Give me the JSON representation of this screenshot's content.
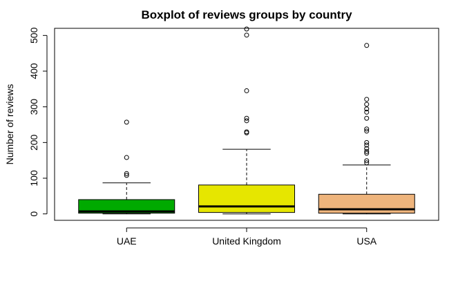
{
  "chart_data": {
    "type": "boxplot",
    "title": "Boxplot of reviews groups by country",
    "xlabel": "",
    "ylabel": "Number of reviews",
    "ylim": [
      -18,
      520
    ],
    "y_ticks": [
      0,
      100,
      200,
      300,
      400,
      500
    ],
    "y_tick_labels": [
      "0",
      "100",
      "200",
      "300",
      "400",
      "500"
    ],
    "grid": false,
    "legend": "none",
    "categories": [
      "UAE",
      "United Kingdom",
      "USA"
    ],
    "boxes": [
      {
        "name": "UAE",
        "color": "#00aa00",
        "whisker_low": 0,
        "q1": 2,
        "median": 7,
        "q3": 40,
        "whisker_high": 87,
        "outliers": [
          108,
          113,
          158,
          257
        ]
      },
      {
        "name": "United Kingdom",
        "color": "#e6e600",
        "whisker_low": 0,
        "q1": 4,
        "median": 21,
        "q3": 81,
        "whisker_high": 181,
        "outliers": [
          227,
          230,
          261,
          268,
          345,
          501,
          518
        ]
      },
      {
        "name": "USA",
        "color": "#eeb47c",
        "whisker_low": 0,
        "q1": 2,
        "median": 13,
        "q3": 55,
        "whisker_high": 137,
        "outliers": [
          143,
          149,
          170,
          175,
          183,
          193,
          200,
          232,
          238,
          268,
          285,
          294,
          307,
          321,
          472
        ]
      }
    ]
  }
}
